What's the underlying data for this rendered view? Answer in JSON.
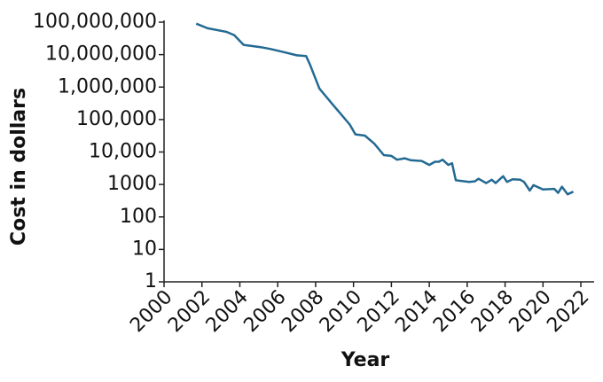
{
  "chart_data": {
    "type": "line",
    "x_label": "Year",
    "y_label": "Cost in dollars",
    "log_y": true,
    "color": "#236a93",
    "xlim": [
      2000,
      2022.7
    ],
    "xticks": [
      2000,
      2002,
      2004,
      2006,
      2008,
      2010,
      2012,
      2014,
      2016,
      2018,
      2020,
      2022
    ],
    "ylim": [
      1,
      100000000
    ],
    "yticks": [
      1,
      10,
      100,
      1000,
      {
        "value": 10000,
        "label": "10,000"
      },
      {
        "value": 100000,
        "label": "100,000"
      },
      {
        "value": 1000000,
        "label": "1,000,000"
      },
      {
        "value": 10000000,
        "label": "10,000,000"
      },
      {
        "value": 100000000,
        "label": "100,000,000"
      }
    ],
    "x": [
      2001.7,
      2002.3,
      2003.3,
      2003.7,
      2004.2,
      2005.1,
      2005.6,
      2006.3,
      2007.0,
      2007.5,
      2007.7,
      2008.2,
      2008.9,
      2009.8,
      2010.1,
      2010.6,
      2011.1,
      2011.6,
      2012.0,
      2012.3,
      2012.7,
      2013.0,
      2013.6,
      2014.0,
      2014.3,
      2014.5,
      2014.7,
      2015.0,
      2015.2,
      2015.4,
      2016.1,
      2016.4,
      2016.6,
      2017.0,
      2017.3,
      2017.5,
      2017.9,
      2018.1,
      2018.4,
      2018.8,
      2019.0,
      2019.3,
      2019.5,
      2020.0,
      2020.6,
      2020.8,
      2021.0,
      2021.3,
      2021.6
    ],
    "values": [
      90000000,
      65000000,
      50000000,
      40000000,
      20000000,
      17000000,
      15000000,
      12000000,
      9500000,
      9000000,
      5000000,
      900000,
      290000,
      70000,
      35000,
      32000,
      18000,
      8000,
      7600,
      5800,
      6400,
      5600,
      5300,
      4000,
      5000,
      5000,
      5800,
      4000,
      4500,
      1350,
      1200,
      1250,
      1500,
      1100,
      1400,
      1100,
      1800,
      1200,
      1450,
      1400,
      1200,
      650,
      950,
      700,
      730,
      550,
      850,
      500,
      600
    ]
  }
}
